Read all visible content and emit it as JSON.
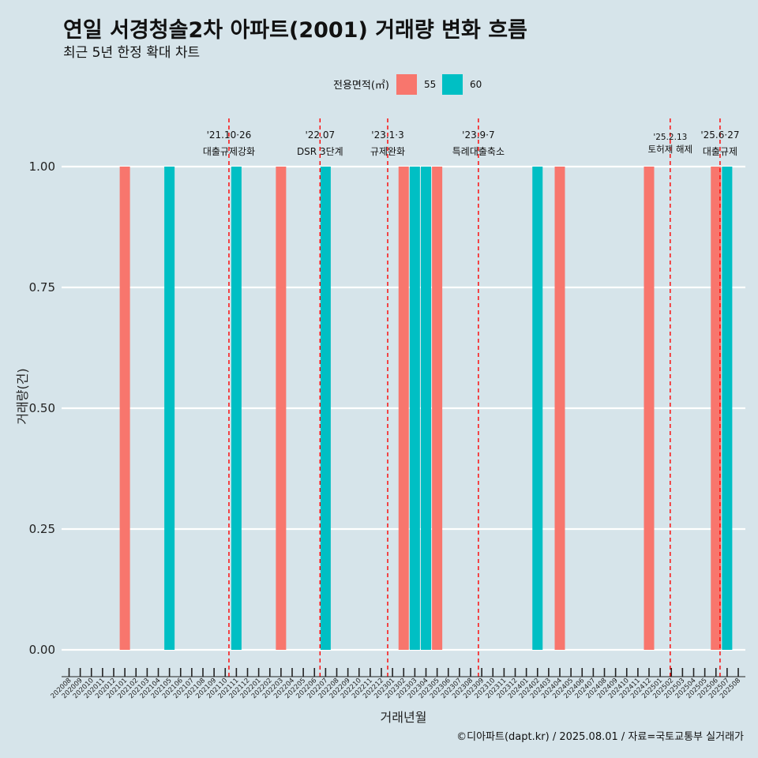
{
  "header": {
    "title": "연일 서경청솔2차 아파트(2001) 거래량 변화 흐름",
    "subtitle": "최근 5년 한정 확대 차트"
  },
  "caption": "©디아파트(dapt.kr) / 2025.08.01 / 자료=국토교통부 실거래가",
  "colors": {
    "s55": "#f8766d",
    "s60": "#00bfc4",
    "grid": "#ffffff",
    "event_line": "#ff0000",
    "background": "#d6e4ea"
  },
  "chart_data": {
    "type": "bar",
    "xlabel": "거래년월",
    "ylabel": "거래량(건)",
    "ylim": [
      0,
      1
    ],
    "yticks": [
      "0.00",
      "0.25",
      "0.50",
      "0.75",
      "1.00"
    ],
    "grid": true,
    "legend": {
      "title": "전용면적(㎡)",
      "placement": "top",
      "entries": [
        "55",
        "60"
      ]
    },
    "categories": [
      "202008",
      "202009",
      "202010",
      "202011",
      "202012",
      "202101",
      "202102",
      "202103",
      "202104",
      "202105",
      "202106",
      "202107",
      "202108",
      "202109",
      "202110",
      "202111",
      "202112",
      "202201",
      "202202",
      "202203",
      "202204",
      "202205",
      "202206",
      "202207",
      "202208",
      "202209",
      "202210",
      "202211",
      "202212",
      "202301",
      "202302",
      "202303",
      "202304",
      "202305",
      "202306",
      "202307",
      "202308",
      "202309",
      "202310",
      "202311",
      "202312",
      "202401",
      "202402",
      "202403",
      "202404",
      "202405",
      "202406",
      "202407",
      "202408",
      "202409",
      "202410",
      "202411",
      "202412",
      "202501",
      "202502",
      "202503",
      "202504",
      "202505",
      "202506",
      "202507",
      "202508"
    ],
    "series": [
      {
        "name": "55",
        "points": [
          {
            "x": "202101",
            "y": 1
          },
          {
            "x": "202203",
            "y": 1
          },
          {
            "x": "202302",
            "y": 1
          },
          {
            "x": "202305",
            "y": 1
          },
          {
            "x": "202404",
            "y": 1
          },
          {
            "x": "202412",
            "y": 1
          },
          {
            "x": "202506",
            "y": 1
          }
        ]
      },
      {
        "name": "60",
        "points": [
          {
            "x": "202105",
            "y": 1
          },
          {
            "x": "202111",
            "y": 1
          },
          {
            "x": "202207",
            "y": 1
          },
          {
            "x": "202303",
            "y": 1
          },
          {
            "x": "202304",
            "y": 1
          },
          {
            "x": "202402",
            "y": 1
          },
          {
            "x": "202507",
            "y": 1
          }
        ]
      }
    ],
    "events": [
      {
        "date": "2021-10-26",
        "label1": "'21.10·26",
        "label2": "대출규제강화"
      },
      {
        "date": "2022-07-01",
        "label1": "'22.07",
        "label2": "DSR 3단계"
      },
      {
        "date": "2023-01-03",
        "label1": "'23.1·3",
        "label2": "규제완화"
      },
      {
        "date": "2023-09-07",
        "label1": "'23.9·7",
        "label2": "특례대출축소"
      },
      {
        "date": "2025-02-13",
        "label1": "'25.2.13",
        "label2": "토허제 해제"
      },
      {
        "date": "2025-06-27",
        "label1": "'25.6·27",
        "label2": "대출규제"
      }
    ]
  }
}
